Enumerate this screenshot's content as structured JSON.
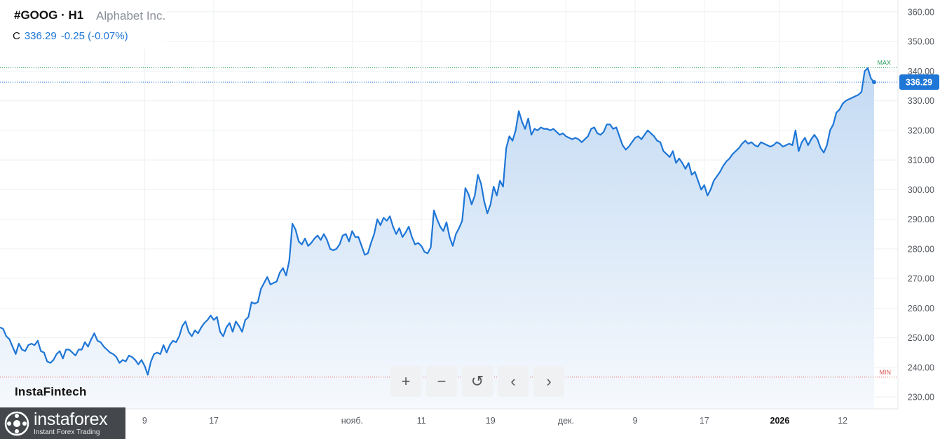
{
  "header": {
    "symbol": "#GOOG · H1",
    "company": "Alphabet Inc.",
    "close_label": "C",
    "close_value": "336.29",
    "change": "-0.25 (-0.07%)"
  },
  "branding": {
    "watermark": "InstaFintech",
    "logo_name": "instaforex",
    "logo_tagline": "Instant Forex Trading"
  },
  "controls": {
    "zoom_in": "+",
    "zoom_out": "−",
    "reset": "↺",
    "prev": "‹",
    "next": "›"
  },
  "colors": {
    "line": "#1e76d6",
    "fill_top": "#c6dcf3",
    "fill_bottom": "#f4f8fd",
    "max_line": "#2e9e5e",
    "min_line": "#d9534f",
    "price_tag": "#1e76d6"
  },
  "chart_data": {
    "type": "area",
    "symbol": "#GOOG",
    "timeframe": "H1",
    "ylim": [
      226,
      364
    ],
    "y_ticks": [
      "360.00",
      "350.00",
      "340.00",
      "330.00",
      "320.00",
      "310.00",
      "300.00",
      "290.00",
      "280.00",
      "270.00",
      "260.00",
      "250.00",
      "240.00",
      "230.00"
    ],
    "x_ticks": [
      {
        "label": "9",
        "index": 46,
        "bold": false
      },
      {
        "label": "17",
        "index": 68,
        "bold": false
      },
      {
        "label": "нояб.",
        "index": 112,
        "bold": false
      },
      {
        "label": "11",
        "index": 134,
        "bold": false
      },
      {
        "label": "19",
        "index": 156,
        "bold": false
      },
      {
        "label": "дек.",
        "index": 180,
        "bold": false
      },
      {
        "label": "9",
        "index": 202,
        "bold": false
      },
      {
        "label": "17",
        "index": 224,
        "bold": false
      },
      {
        "label": "2026",
        "index": 248,
        "bold": true
      },
      {
        "label": "12",
        "index": 268,
        "bold": false
      }
    ],
    "last_price": 336.29,
    "max_label": "MAX",
    "max_value": 341.2,
    "min_label": "MIN",
    "min_value": 236.7,
    "values": [
      253.5,
      253.0,
      250.5,
      249.5,
      247.0,
      244.5,
      248.0,
      246.0,
      245.5,
      247.5,
      248.0,
      247.5,
      249.0,
      245.5,
      245.0,
      242.0,
      241.5,
      242.5,
      244.5,
      245.5,
      243.0,
      246.0,
      246.0,
      245.0,
      244.0,
      246.0,
      246.0,
      248.5,
      247.0,
      249.5,
      251.5,
      249.0,
      248.5,
      247.0,
      246.0,
      245.0,
      244.5,
      243.5,
      241.5,
      242.5,
      242.0,
      244.0,
      243.5,
      242.5,
      241.0,
      242.5,
      240.5,
      237.5,
      242.0,
      244.5,
      245.0,
      244.5,
      247.5,
      245.0,
      247.5,
      249.0,
      248.5,
      250.5,
      254.0,
      255.5,
      252.0,
      250.5,
      252.5,
      251.5,
      253.5,
      255.0,
      256.0,
      257.5,
      256.0,
      257.0,
      252.0,
      250.5,
      253.5,
      255.0,
      252.0,
      255.5,
      254.0,
      252.0,
      256.0,
      257.0,
      262.0,
      261.5,
      262.0,
      266.5,
      268.5,
      270.5,
      268.0,
      268.5,
      269.0,
      272.0,
      273.5,
      271.0,
      276.0,
      288.5,
      286.5,
      282.5,
      281.5,
      283.5,
      281.0,
      282.0,
      283.5,
      284.5,
      283.0,
      285.0,
      283.0,
      280.0,
      279.5,
      280.0,
      281.5,
      284.5,
      285.0,
      282.5,
      286.0,
      284.0,
      284.0,
      281.0,
      278.0,
      278.5,
      282.0,
      285.0,
      290.0,
      288.0,
      290.5,
      289.5,
      291.0,
      287.5,
      285.0,
      287.0,
      284.0,
      285.5,
      287.5,
      284.0,
      281.5,
      282.0,
      281.0,
      279.0,
      278.5,
      280.5,
      293.0,
      290.0,
      287.5,
      286.0,
      289.0,
      284.0,
      281.0,
      285.0,
      287.0,
      289.5,
      300.5,
      298.5,
      295.0,
      298.0,
      305.0,
      302.0,
      296.0,
      292.0,
      295.0,
      301.0,
      298.0,
      303.0,
      301.0,
      314.0,
      318.0,
      316.5,
      320.0,
      326.5,
      323.0,
      320.5,
      324.0,
      318.5,
      320.5,
      320.0,
      321.0,
      320.5,
      320.5,
      320.0,
      320.5,
      319.5,
      318.5,
      319.0,
      318.0,
      317.5,
      317.0,
      317.5,
      317.0,
      316.0,
      317.0,
      318.0,
      320.5,
      321.0,
      319.0,
      318.5,
      319.5,
      322.0,
      322.0,
      320.5,
      321.0,
      318.0,
      315.0,
      313.5,
      314.5,
      316.0,
      317.5,
      318.0,
      317.0,
      318.5,
      320.0,
      319.0,
      318.0,
      316.5,
      316.0,
      313.0,
      312.0,
      311.0,
      313.0,
      309.0,
      310.5,
      309.0,
      307.0,
      309.0,
      305.0,
      306.0,
      303.0,
      300.0,
      301.5,
      298.0,
      300.0,
      303.0,
      304.5,
      306.0,
      308.0,
      309.5,
      310.5,
      312.0,
      313.0,
      314.0,
      315.5,
      316.5,
      315.5,
      316.0,
      315.0,
      314.5,
      316.0,
      315.5,
      315.0,
      314.5,
      315.0,
      316.0,
      315.5,
      314.5,
      315.0,
      315.5,
      315.0,
      320.0,
      313.0,
      316.0,
      317.5,
      315.0,
      317.0,
      318.5,
      317.0,
      314.0,
      312.5,
      315.0,
      320.0,
      322.0,
      326.0,
      327.0,
      329.0,
      330.0,
      330.5,
      331.0,
      331.5,
      332.0,
      333.0,
      340.0,
      341.0,
      337.5,
      336.29
    ]
  }
}
